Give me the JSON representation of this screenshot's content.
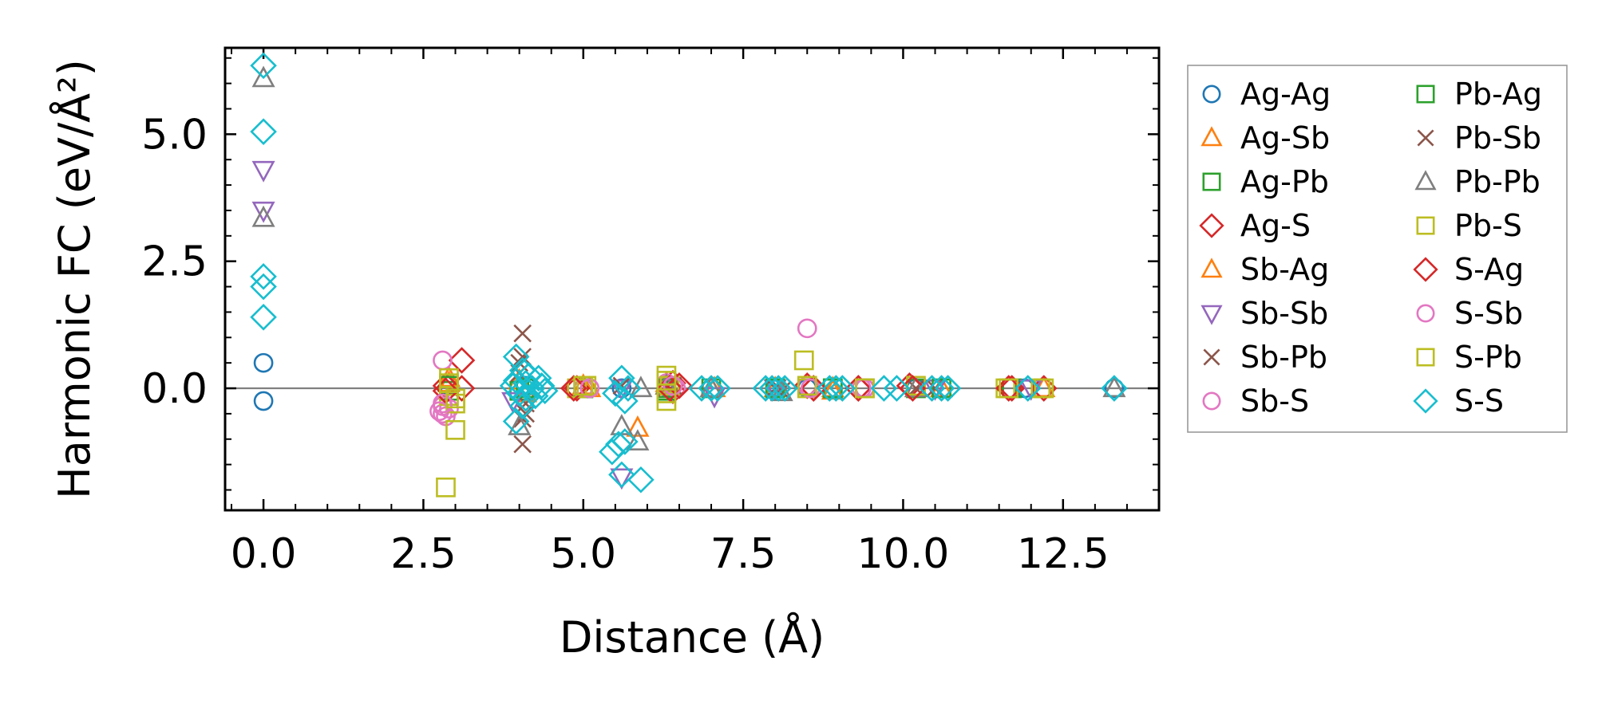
{
  "chart_data": {
    "type": "scatter",
    "title": "",
    "xlabel": "Distance (Å)",
    "ylabel": "Harmonic FC (eV/Å²)",
    "xlim": [
      -0.6,
      14.0
    ],
    "ylim": [
      -2.4,
      6.7
    ],
    "xticks": [
      0.0,
      2.5,
      5.0,
      7.5,
      10.0,
      12.5
    ],
    "xtick_labels": [
      "0.0",
      "2.5",
      "5.0",
      "7.5",
      "10.0",
      "12.5"
    ],
    "yticks": [
      0.0,
      2.5,
      5.0
    ],
    "ytick_labels": [
      "0.0",
      "2.5",
      "5.0"
    ],
    "grid": false,
    "zero_line": true,
    "legend_position": "outside-right",
    "series": [
      {
        "name": "Ag-Ag",
        "marker": "circle",
        "color": "#1f77b4",
        "points": [
          [
            0,
            0.5
          ],
          [
            0,
            -0.25
          ],
          [
            2.9,
            0.05
          ],
          [
            4.1,
            0.05
          ],
          [
            5.0,
            0.0
          ],
          [
            5.6,
            0.0
          ],
          [
            6.3,
            0.02
          ],
          [
            7.0,
            0.0
          ],
          [
            8.0,
            0.0
          ],
          [
            8.5,
            0.0
          ],
          [
            9.4,
            0.0
          ],
          [
            10.2,
            0.0
          ],
          [
            11.9,
            0.0
          ],
          [
            13.3,
            0.0
          ]
        ]
      },
      {
        "name": "Ag-Sb",
        "marker": "triangle-up",
        "color": "#ff7f0e",
        "points": [
          [
            2.9,
            0.1
          ],
          [
            4.0,
            0.15
          ],
          [
            5.0,
            0.05
          ],
          [
            5.85,
            -0.78
          ],
          [
            6.3,
            0.05
          ],
          [
            7.0,
            0.0
          ],
          [
            8.0,
            0.0
          ],
          [
            8.9,
            -0.05
          ],
          [
            10.2,
            0.0
          ],
          [
            12.2,
            0.0
          ]
        ]
      },
      {
        "name": "Ag-Pb",
        "marker": "square",
        "color": "#2ca02c",
        "points": [
          [
            2.9,
            -0.05
          ],
          [
            4.0,
            -0.05
          ],
          [
            5.0,
            0.0
          ],
          [
            6.3,
            -0.05
          ],
          [
            7.0,
            0.0
          ],
          [
            8.0,
            0.0
          ],
          [
            8.9,
            0.0
          ],
          [
            9.4,
            0.0
          ],
          [
            10.2,
            0.0
          ],
          [
            11.7,
            0.0
          ]
        ]
      },
      {
        "name": "Ag-S",
        "marker": "diamond",
        "color": "#d62728",
        "points": [
          [
            2.85,
            0.05
          ],
          [
            3.1,
            0.55
          ],
          [
            3.1,
            0.0
          ],
          [
            4.9,
            0.0
          ],
          [
            6.4,
            0.1
          ],
          [
            6.4,
            -0.05
          ],
          [
            8.5,
            0.05
          ],
          [
            8.6,
            0.0
          ],
          [
            9.3,
            0.0
          ],
          [
            10.1,
            0.05
          ],
          [
            11.7,
            0.0
          ],
          [
            12.2,
            0.0
          ]
        ]
      },
      {
        "name": "Sb-Ag",
        "marker": "triangle-up",
        "color": "#ff7f0e",
        "points": [
          [
            2.9,
            0.2
          ],
          [
            4.1,
            -0.1
          ],
          [
            5.1,
            0.0
          ],
          [
            6.3,
            0.1
          ],
          [
            7.05,
            0.0
          ],
          [
            8.9,
            0.0
          ],
          [
            10.6,
            0.0
          ]
        ]
      },
      {
        "name": "Sb-Sb",
        "marker": "triangle-down",
        "color": "#9467bd",
        "points": [
          [
            0,
            4.3
          ],
          [
            0,
            3.5
          ],
          [
            3.9,
            -0.25
          ],
          [
            5.6,
            -1.75
          ],
          [
            5.6,
            0.0
          ],
          [
            7.05,
            -0.15
          ],
          [
            8.0,
            0.0
          ],
          [
            10.5,
            0.0
          ],
          [
            12.0,
            0.0
          ]
        ]
      },
      {
        "name": "Sb-Pb",
        "marker": "x",
        "color": "#8c564b",
        "points": [
          [
            4.05,
            1.08
          ],
          [
            4.05,
            0.62
          ],
          [
            4.05,
            -0.6
          ],
          [
            4.05,
            -1.1
          ],
          [
            4.0,
            0.3
          ],
          [
            4.1,
            -0.3
          ],
          [
            6.4,
            0.05
          ],
          [
            8.1,
            -0.05
          ],
          [
            10.2,
            0.0
          ]
        ]
      },
      {
        "name": "Sb-S",
        "marker": "circle",
        "color": "#e377c2",
        "points": [
          [
            2.8,
            0.55
          ],
          [
            2.8,
            -0.35
          ],
          [
            2.8,
            -0.5
          ],
          [
            2.85,
            -0.55
          ],
          [
            2.9,
            -0.4
          ],
          [
            5.0,
            0.0
          ],
          [
            6.3,
            0.1
          ],
          [
            6.45,
            0.0
          ],
          [
            8.5,
            1.18
          ],
          [
            8.5,
            0.05
          ],
          [
            9.4,
            0.0
          ]
        ]
      },
      {
        "name": "Pb-Ag",
        "marker": "square",
        "color": "#2ca02c",
        "points": [
          [
            2.9,
            0.05
          ],
          [
            4.1,
            0.0
          ],
          [
            5.0,
            0.0
          ],
          [
            6.3,
            0.0
          ],
          [
            8.0,
            0.0
          ],
          [
            8.9,
            0.0
          ],
          [
            10.6,
            0.0
          ]
        ]
      },
      {
        "name": "Pb-Sb",
        "marker": "x",
        "color": "#8c564b",
        "points": [
          [
            4.0,
            0.5
          ],
          [
            4.1,
            -0.5
          ],
          [
            5.6,
            0.05
          ],
          [
            6.3,
            0.0
          ],
          [
            8.0,
            0.0
          ],
          [
            10.5,
            0.0
          ]
        ]
      },
      {
        "name": "Pb-Pb",
        "marker": "triangle-up",
        "color": "#7f7f7f",
        "points": [
          [
            0,
            6.1
          ],
          [
            0,
            3.35
          ],
          [
            4.0,
            -0.75
          ],
          [
            5.6,
            -0.75
          ],
          [
            5.85,
            -1.05
          ],
          [
            5.9,
            0.0
          ],
          [
            6.3,
            0.05
          ],
          [
            7.0,
            0.0
          ],
          [
            8.1,
            -0.08
          ],
          [
            10.2,
            0.0
          ],
          [
            13.3,
            0.0
          ]
        ]
      },
      {
        "name": "Pb-S",
        "marker": "square",
        "color": "#bcbd22",
        "points": [
          [
            2.85,
            -1.95
          ],
          [
            2.9,
            0.2
          ],
          [
            2.9,
            -0.15
          ],
          [
            3.0,
            -0.3
          ],
          [
            3.0,
            -0.82
          ],
          [
            4.9,
            0.0
          ],
          [
            5.05,
            0.05
          ],
          [
            6.3,
            0.25
          ],
          [
            6.3,
            -0.25
          ],
          [
            6.35,
            0.05
          ],
          [
            8.45,
            0.55
          ],
          [
            8.5,
            0.0
          ],
          [
            9.4,
            0.0
          ],
          [
            10.2,
            0.05
          ],
          [
            11.6,
            0.0
          ],
          [
            12.2,
            0.0
          ]
        ]
      },
      {
        "name": "S-Ag",
        "marker": "diamond",
        "color": "#d62728",
        "points": [
          [
            2.85,
            -0.05
          ],
          [
            4.85,
            0.0
          ],
          [
            6.35,
            0.0
          ],
          [
            6.5,
            0.05
          ],
          [
            8.6,
            0.0
          ],
          [
            9.3,
            0.0
          ],
          [
            10.15,
            0.0
          ],
          [
            11.65,
            0.0
          ]
        ]
      },
      {
        "name": "S-Sb",
        "marker": "circle",
        "color": "#e377c2",
        "points": [
          [
            2.75,
            -0.45
          ],
          [
            2.8,
            -0.3
          ],
          [
            5.1,
            0.0
          ],
          [
            6.4,
            0.05
          ],
          [
            8.55,
            0.0
          ],
          [
            9.35,
            0.0
          ]
        ]
      },
      {
        "name": "S-Pb",
        "marker": "square",
        "color": "#bcbd22",
        "points": [
          [
            2.9,
            0.1
          ],
          [
            3.0,
            -0.2
          ],
          [
            5.0,
            0.05
          ],
          [
            6.3,
            0.15
          ],
          [
            6.3,
            -0.1
          ],
          [
            8.5,
            0.05
          ],
          [
            9.4,
            0.0
          ],
          [
            11.65,
            0.0
          ],
          [
            12.15,
            0.0
          ]
        ]
      },
      {
        "name": "S-S",
        "marker": "diamond",
        "color": "#17becf",
        "points": [
          [
            0,
            6.35
          ],
          [
            0,
            5.05
          ],
          [
            0,
            2.2
          ],
          [
            0,
            2.0
          ],
          [
            0,
            1.4
          ],
          [
            3.95,
            0.62
          ],
          [
            3.95,
            -0.65
          ],
          [
            4.0,
            -0.1
          ],
          [
            3.95,
            0.15
          ],
          [
            4.05,
            0.35
          ],
          [
            4.05,
            -0.35
          ],
          [
            4.1,
            0.1
          ],
          [
            4.1,
            -0.2
          ],
          [
            4.15,
            0.25
          ],
          [
            4.2,
            0.0
          ],
          [
            4.25,
            -0.15
          ],
          [
            4.3,
            0.2
          ],
          [
            4.35,
            0.05
          ],
          [
            4.4,
            -0.05
          ],
          [
            3.9,
            0.05
          ],
          [
            5.45,
            -1.25
          ],
          [
            5.55,
            -1.1
          ],
          [
            5.65,
            -1.05
          ],
          [
            5.6,
            -1.7
          ],
          [
            5.9,
            -1.8
          ],
          [
            5.5,
            -0.1
          ],
          [
            5.6,
            0.2
          ],
          [
            5.65,
            -0.25
          ],
          [
            5.7,
            0.0
          ],
          [
            6.85,
            0.0
          ],
          [
            7.0,
            0.0
          ],
          [
            7.1,
            0.0
          ],
          [
            7.85,
            0.0
          ],
          [
            7.95,
            0.0
          ],
          [
            8.05,
            0.0
          ],
          [
            8.15,
            0.0
          ],
          [
            8.85,
            0.0
          ],
          [
            8.95,
            0.0
          ],
          [
            9.05,
            0.0
          ],
          [
            9.7,
            0.0
          ],
          [
            9.9,
            0.0
          ],
          [
            10.45,
            0.0
          ],
          [
            10.6,
            0.0
          ],
          [
            10.7,
            0.0
          ],
          [
            11.95,
            0.0
          ],
          [
            13.3,
            0.0
          ]
        ]
      }
    ]
  }
}
